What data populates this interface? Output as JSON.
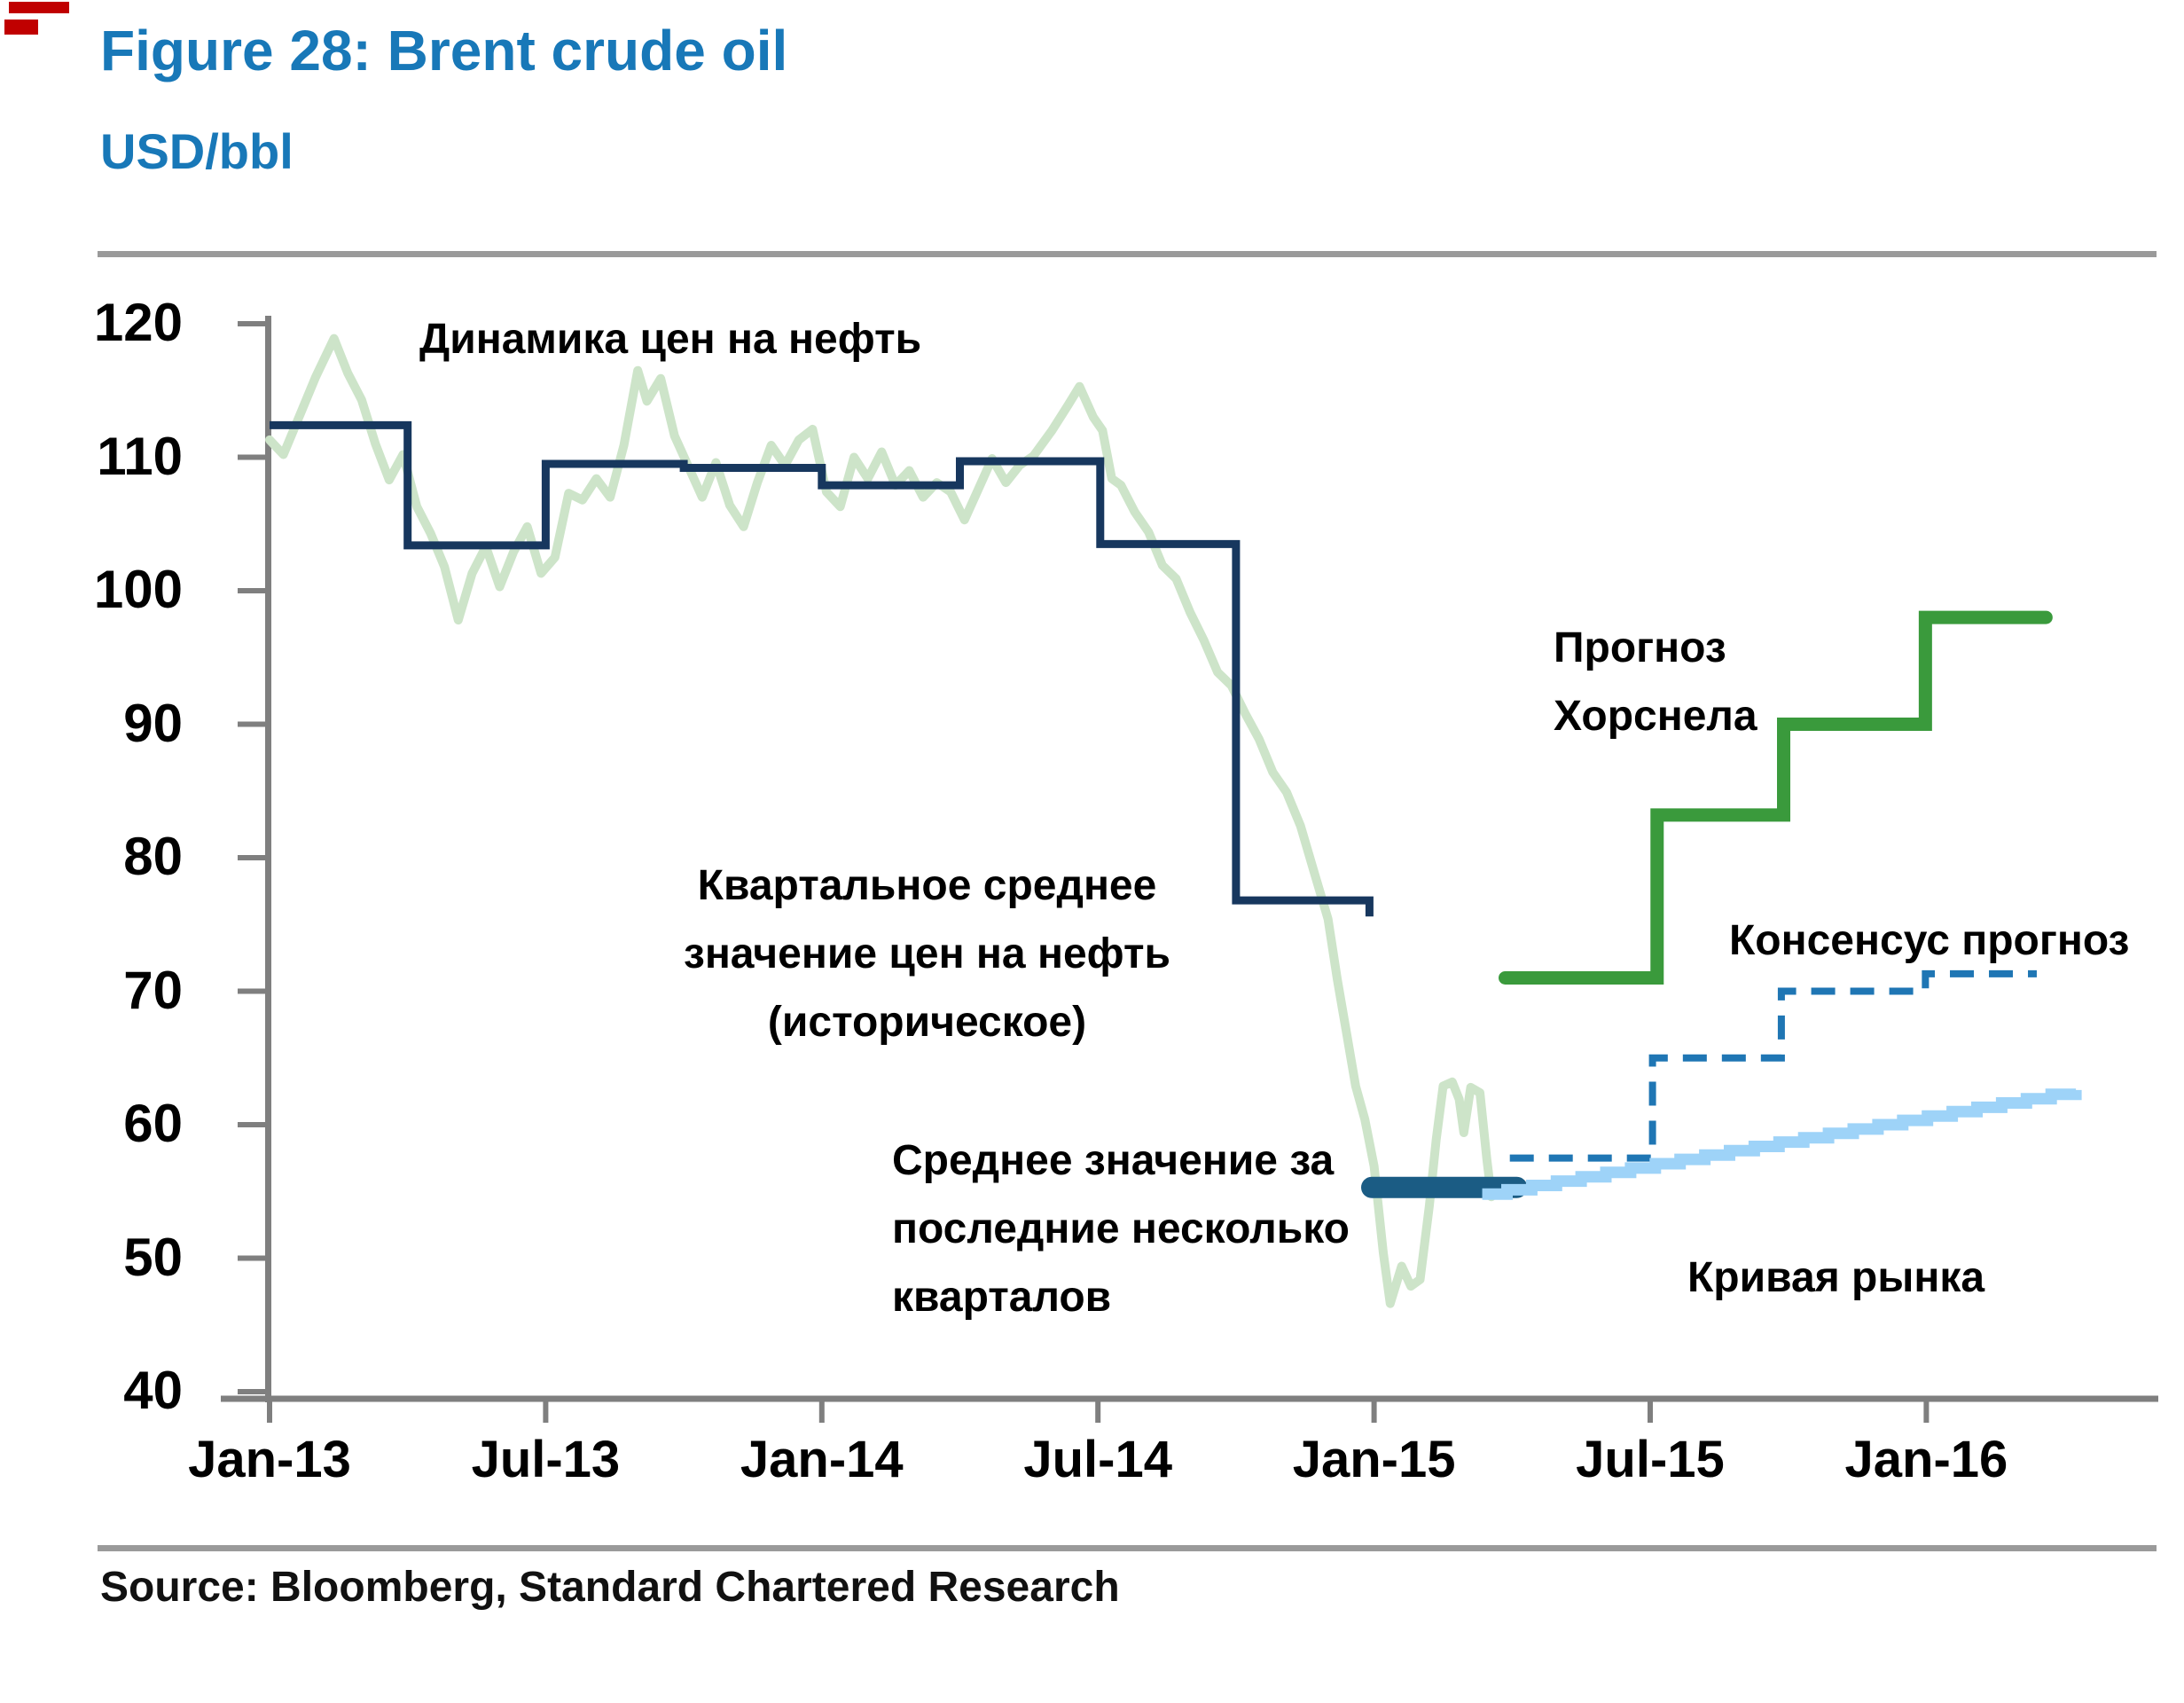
{
  "figure": {
    "title": "Figure 28: Brent crude oil",
    "subtitle": "USD/bbl",
    "source": "Source: Bloomberg, Standard Chartered Research"
  },
  "labels": {
    "dynamics": "Динамика цен на нефть",
    "quarterly_line1": "Квартальное среднее",
    "quarterly_line2": "значение цен на нефть",
    "quarterly_line3": "(историческое)",
    "avg_line1": "Среднее значение за",
    "avg_line2": "последние несколько",
    "avg_line3": "кварталов",
    "horsnell_line1": "Прогноз",
    "horsnell_line2": "Хорснела",
    "consensus": "Консенсус прогноз",
    "market": "Кривая рынка"
  },
  "colors": {
    "title_blue": "#1878b8",
    "history_navy": "#17375e",
    "recent_avg_blue": "#1b5c84",
    "daily_green": "#cde4c9",
    "forecast_green": "#3a9a3c",
    "consensus_blue": "#1f76b4",
    "market_light_blue": "#9ed3f8",
    "axis_gray": "#7f7f7f",
    "rule_gray": "#9a9a9a",
    "artifact_red": "#c00000",
    "text_black": "#000000"
  },
  "chart_data": {
    "type": "line",
    "title": "Figure 28: Brent crude oil",
    "ylabel": "USD/bbl",
    "xlabel": "",
    "ylim": [
      40,
      120
    ],
    "grid": false,
    "legend_position": "annotations-on-chart",
    "x_unit_note": "m = months since Jan-2013",
    "y_ticks": [
      120,
      110,
      100,
      90,
      80,
      70,
      60,
      50,
      40
    ],
    "x_ticks": [
      {
        "label": "Jan-13",
        "m": 0
      },
      {
        "label": "Jul-13",
        "m": 6
      },
      {
        "label": "Jan-14",
        "m": 12
      },
      {
        "label": "Jul-14",
        "m": 18
      },
      {
        "label": "Jan-15",
        "m": 24
      },
      {
        "label": "Jul-15",
        "m": 30
      },
      {
        "label": "Jan-16",
        "m": 36
      }
    ],
    "series": [
      {
        "name": "oil-price-dynamics",
        "label": "Динамика цен на нефть",
        "style": "line",
        "color_ref": "daily_green",
        "width": 10,
        "points": [
          [
            0,
            111.3
          ],
          [
            0.3,
            110.2
          ],
          [
            0.7,
            113.5
          ],
          [
            1.0,
            116.0
          ],
          [
            1.4,
            118.9
          ],
          [
            1.7,
            116.3
          ],
          [
            2.0,
            114.3
          ],
          [
            2.3,
            111.0
          ],
          [
            2.6,
            108.3
          ],
          [
            2.9,
            110.2
          ],
          [
            3.2,
            106.3
          ],
          [
            3.5,
            104.3
          ],
          [
            3.8,
            101.8
          ],
          [
            4.1,
            97.8
          ],
          [
            4.4,
            101.3
          ],
          [
            4.7,
            103.3
          ],
          [
            5.0,
            100.3
          ],
          [
            5.3,
            102.9
          ],
          [
            5.6,
            104.8
          ],
          [
            5.9,
            101.3
          ],
          [
            6.2,
            102.5
          ],
          [
            6.5,
            107.3
          ],
          [
            6.8,
            106.8
          ],
          [
            7.1,
            108.4
          ],
          [
            7.4,
            107.0
          ],
          [
            7.7,
            110.9
          ],
          [
            8.0,
            116.5
          ],
          [
            8.2,
            114.2
          ],
          [
            8.5,
            115.9
          ],
          [
            8.8,
            111.6
          ],
          [
            9.1,
            109.3
          ],
          [
            9.4,
            107.0
          ],
          [
            9.7,
            109.6
          ],
          [
            10.0,
            106.4
          ],
          [
            10.3,
            104.8
          ],
          [
            10.6,
            108.1
          ],
          [
            10.9,
            110.9
          ],
          [
            11.2,
            109.4
          ],
          [
            11.5,
            111.3
          ],
          [
            11.8,
            112.1
          ],
          [
            12.1,
            107.4
          ],
          [
            12.4,
            106.3
          ],
          [
            12.7,
            110.0
          ],
          [
            13.0,
            108.4
          ],
          [
            13.3,
            110.4
          ],
          [
            13.6,
            107.9
          ],
          [
            13.9,
            109.0
          ],
          [
            14.2,
            107.0
          ],
          [
            14.5,
            108.1
          ],
          [
            14.8,
            107.4
          ],
          [
            15.1,
            105.3
          ],
          [
            15.4,
            107.6
          ],
          [
            15.7,
            109.9
          ],
          [
            16.0,
            108.1
          ],
          [
            16.3,
            109.4
          ],
          [
            16.6,
            110.1
          ],
          [
            17.0,
            112.0
          ],
          [
            17.35,
            113.9
          ],
          [
            17.6,
            115.3
          ],
          [
            17.9,
            113.0
          ],
          [
            18.1,
            112.0
          ],
          [
            18.3,
            108.4
          ],
          [
            18.5,
            107.9
          ],
          [
            18.8,
            105.9
          ],
          [
            19.1,
            104.4
          ],
          [
            19.4,
            101.9
          ],
          [
            19.7,
            100.9
          ],
          [
            20.0,
            98.4
          ],
          [
            20.3,
            96.3
          ],
          [
            20.6,
            93.9
          ],
          [
            20.9,
            92.9
          ],
          [
            21.2,
            90.8
          ],
          [
            21.5,
            88.9
          ],
          [
            21.8,
            86.4
          ],
          [
            22.1,
            84.9
          ],
          [
            22.4,
            82.4
          ],
          [
            22.7,
            78.9
          ],
          [
            23.0,
            75.4
          ],
          [
            23.2,
            70.9
          ],
          [
            23.4,
            66.9
          ],
          [
            23.6,
            62.9
          ],
          [
            23.8,
            60.4
          ],
          [
            24.0,
            56.9
          ],
          [
            24.2,
            50.4
          ],
          [
            24.35,
            46.6
          ],
          [
            24.6,
            49.4
          ],
          [
            24.8,
            47.9
          ],
          [
            25.0,
            48.4
          ],
          [
            25.2,
            53.9
          ],
          [
            25.35,
            58.9
          ],
          [
            25.5,
            62.9
          ],
          [
            25.7,
            63.2
          ],
          [
            25.85,
            61.9
          ],
          [
            25.95,
            59.4
          ],
          [
            26.1,
            62.8
          ],
          [
            26.3,
            62.4
          ],
          [
            26.45,
            57.4
          ],
          [
            26.55,
            54.6
          ]
        ]
      },
      {
        "name": "quarterly-average-historical",
        "label": "Квартальное среднее значение цен на нефть (историческое)",
        "style": "step",
        "color_ref": "history_navy",
        "width": 9,
        "linecap": "butt",
        "start_m": 0,
        "steps": [
          {
            "to_m": 3.0,
            "value": 112.4
          },
          {
            "to_m": 6.0,
            "value": 103.4
          },
          {
            "to_m": 9.0,
            "value": 109.5
          },
          {
            "to_m": 12.0,
            "value": 109.2
          },
          {
            "to_m": 15.0,
            "value": 107.9
          },
          {
            "to_m": 18.05,
            "value": 109.7
          },
          {
            "to_m": 21.0,
            "value": 103.5
          },
          {
            "to_m": 23.9,
            "value": 76.8
          }
        ],
        "end_tick_value": 75.6
      },
      {
        "name": "recent-quarters-average",
        "label": "Среднее значение за последние несколько кварталов",
        "style": "bar-segment",
        "color_ref": "recent_avg_blue",
        "width": 24,
        "value": 55.3,
        "from_m": 23.95,
        "to_m": 27.1
      },
      {
        "name": "horsnell-forecast",
        "label": "Прогноз Хорснела",
        "style": "step",
        "color_ref": "forecast_green",
        "width": 15,
        "linecap": "round",
        "start_m": 26.85,
        "steps": [
          {
            "to_m": 30.15,
            "value": 71.0
          },
          {
            "to_m": 32.9,
            "value": 83.2
          },
          {
            "to_m": 35.98,
            "value": 90.0
          },
          {
            "to_m": 38.6,
            "value": 98.0
          }
        ]
      },
      {
        "name": "consensus-forecast",
        "label": "Консенсус прогноз",
        "style": "step",
        "color_ref": "consensus_blue",
        "width": 8,
        "linecap": "butt",
        "dash": [
          27,
          17
        ],
        "start_m": 26.95,
        "steps": [
          {
            "to_m": 30.05,
            "value": 57.5
          },
          {
            "to_m": 32.85,
            "value": 65.0
          },
          {
            "to_m": 35.98,
            "value": 70.0
          },
          {
            "to_m": 38.4,
            "value": 71.3
          }
        ]
      },
      {
        "name": "market-curve",
        "label": "Кривая рынка",
        "style": "staircase",
        "color_ref": "market_light_blue",
        "width": 13,
        "from": {
          "m": 26.35,
          "value": 54.8
        },
        "to": {
          "m": 39.25,
          "value": 62.6
        },
        "steps": 24
      }
    ]
  }
}
